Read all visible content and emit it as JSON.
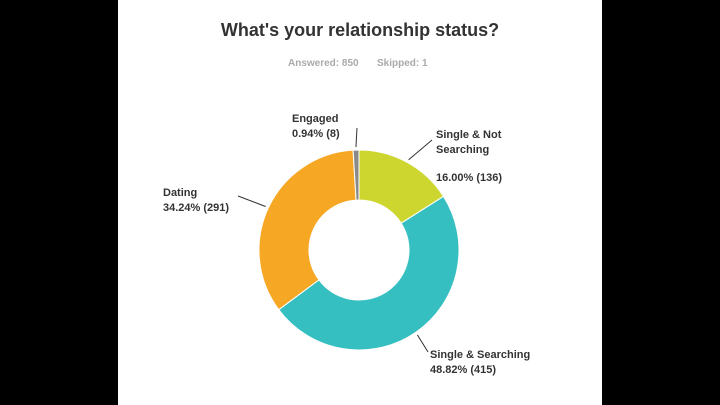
{
  "chart_data": {
    "type": "donut",
    "title": "What's your relationship status?",
    "answered": "Answered: 850",
    "skipped": "Skipped: 1",
    "categories": [
      "Single & Not Searching",
      "Single & Searching",
      "Dating",
      "Engaged"
    ],
    "values": [
      16.0,
      48.82,
      34.24,
      0.94
    ],
    "value_labels": [
      "16.00% (136)",
      "48.82% (415)",
      "34.24% (291)",
      "0.94% (8)"
    ],
    "colors": [
      "#cdd52f",
      "#35bfc0",
      "#f6a724",
      "#8a8a8a"
    ]
  }
}
